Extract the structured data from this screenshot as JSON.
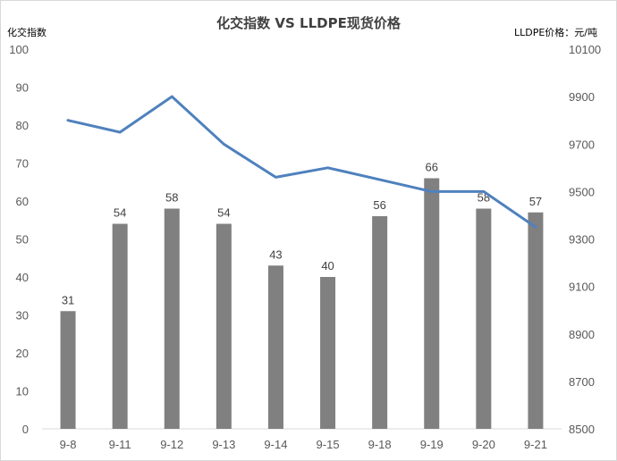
{
  "chart_data": {
    "type": "bar+line",
    "title": "化交指数 VS LLDPE现货价格",
    "ylabel": "化交指数",
    "y2label": "LLDPE价格：元/吨",
    "categories": [
      "9-8",
      "9-11",
      "9-12",
      "9-13",
      "9-14",
      "9-15",
      "9-18",
      "9-19",
      "9-20",
      "9-21"
    ],
    "ylim": [
      0,
      100
    ],
    "yticks": [
      0,
      10,
      20,
      30,
      40,
      50,
      60,
      70,
      80,
      90,
      100
    ],
    "y2lim": [
      8500,
      10100
    ],
    "y2ticks": [
      8500,
      8700,
      8900,
      9100,
      9300,
      9500,
      9700,
      9900,
      10100
    ],
    "series": [
      {
        "name": "化交指数",
        "type": "bar",
        "axis": "left",
        "color": "#808080",
        "values": [
          31,
          54,
          58,
          54,
          43,
          40,
          56,
          66,
          58,
          57
        ]
      },
      {
        "name": "LLDPE现货价格",
        "type": "line",
        "axis": "right",
        "color": "#4f81bd",
        "values": [
          9800,
          9750,
          9900,
          9700,
          9560,
          9600,
          9550,
          9500,
          9500,
          9350
        ]
      }
    ],
    "grid": false,
    "legend": "none"
  }
}
